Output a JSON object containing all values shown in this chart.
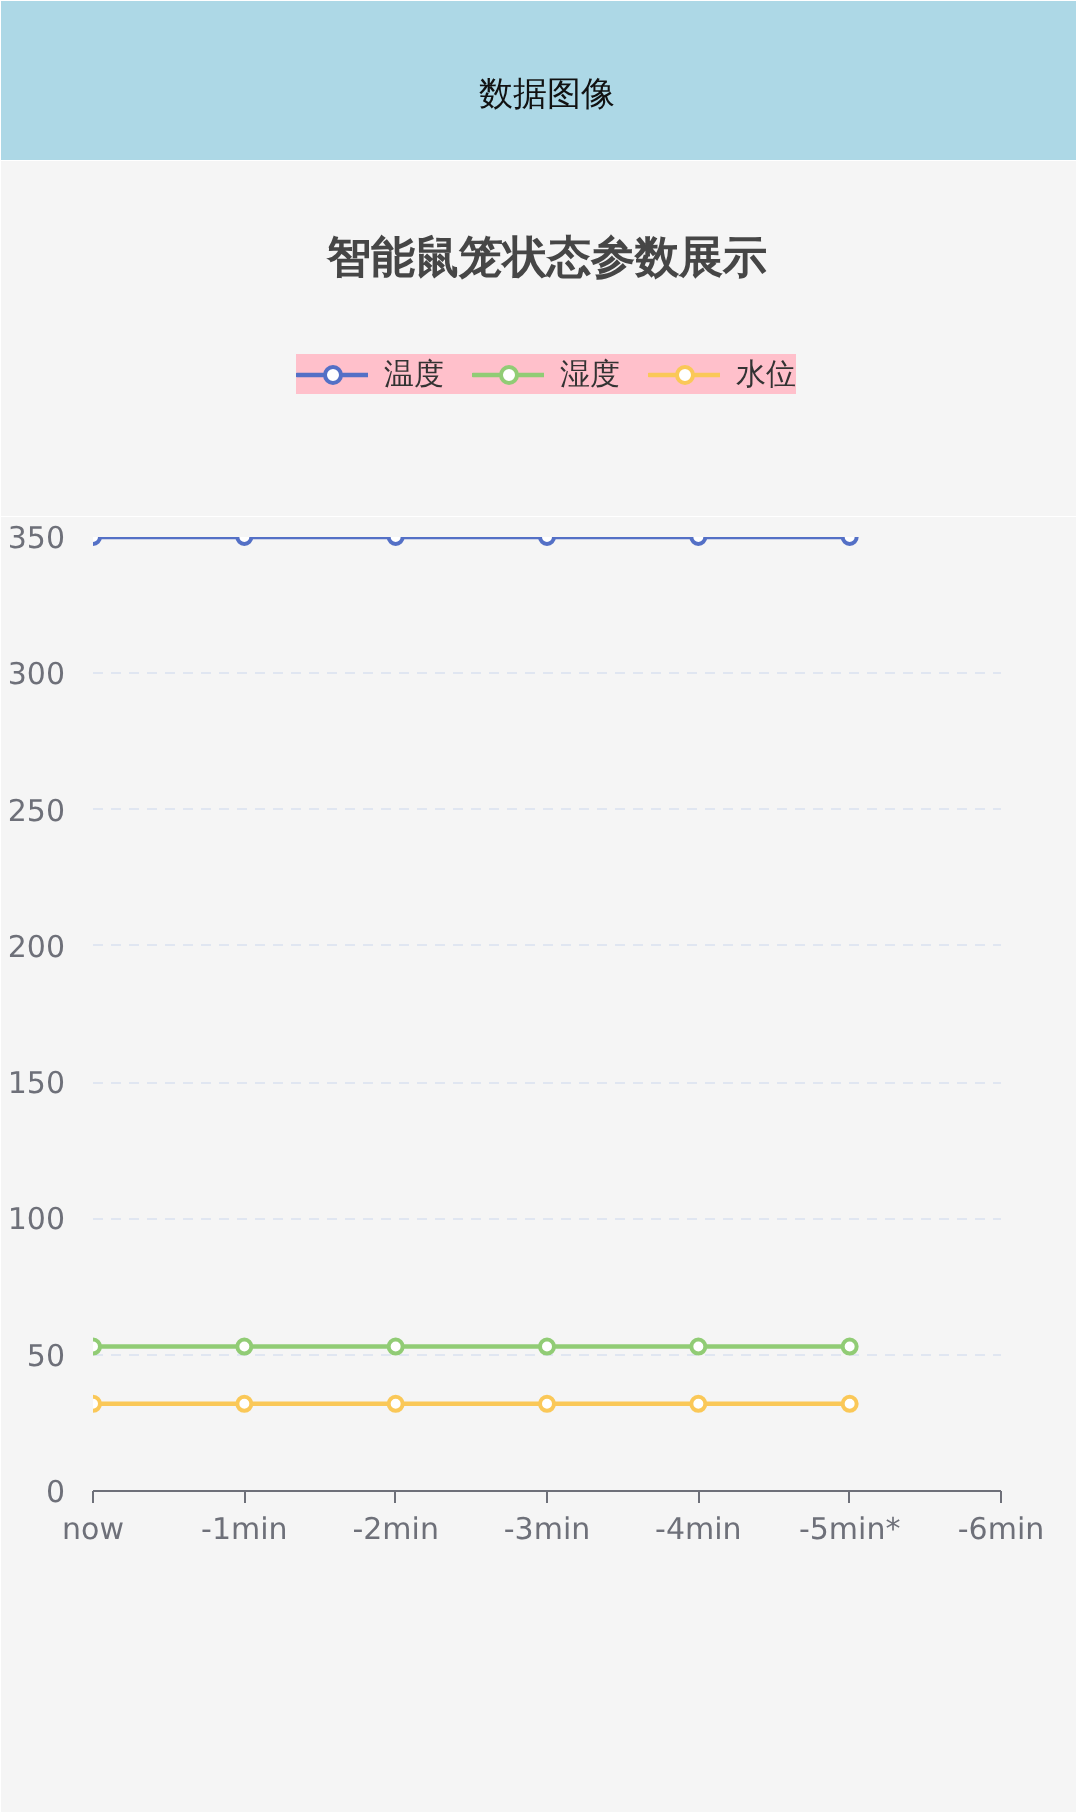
{
  "chart_data": {
    "type": "line",
    "title": "智能鼠笼状态参数展示",
    "annotations": [
      "数据图像"
    ],
    "categories": [
      "now",
      "-1min",
      "-2min",
      "-3min",
      "-4min",
      "-5min*",
      "-6min"
    ],
    "series": [
      {
        "name": "温度",
        "color": "#5470c6",
        "values": [
          350,
          350,
          350,
          350,
          350,
          350,
          null
        ]
      },
      {
        "name": "湿度",
        "color": "#91cc75",
        "values": [
          53,
          53,
          53,
          53,
          53,
          53,
          null
        ]
      },
      {
        "name": "水位",
        "color": "#fac858",
        "values": [
          32,
          32,
          32,
          32,
          32,
          32,
          null
        ]
      }
    ],
    "ylim": [
      0,
      350
    ],
    "yticks": [
      0,
      50,
      100,
      150,
      200,
      250,
      300,
      350
    ],
    "grid": "y",
    "legend": "top",
    "marker": "circle",
    "line_style": "solid"
  }
}
